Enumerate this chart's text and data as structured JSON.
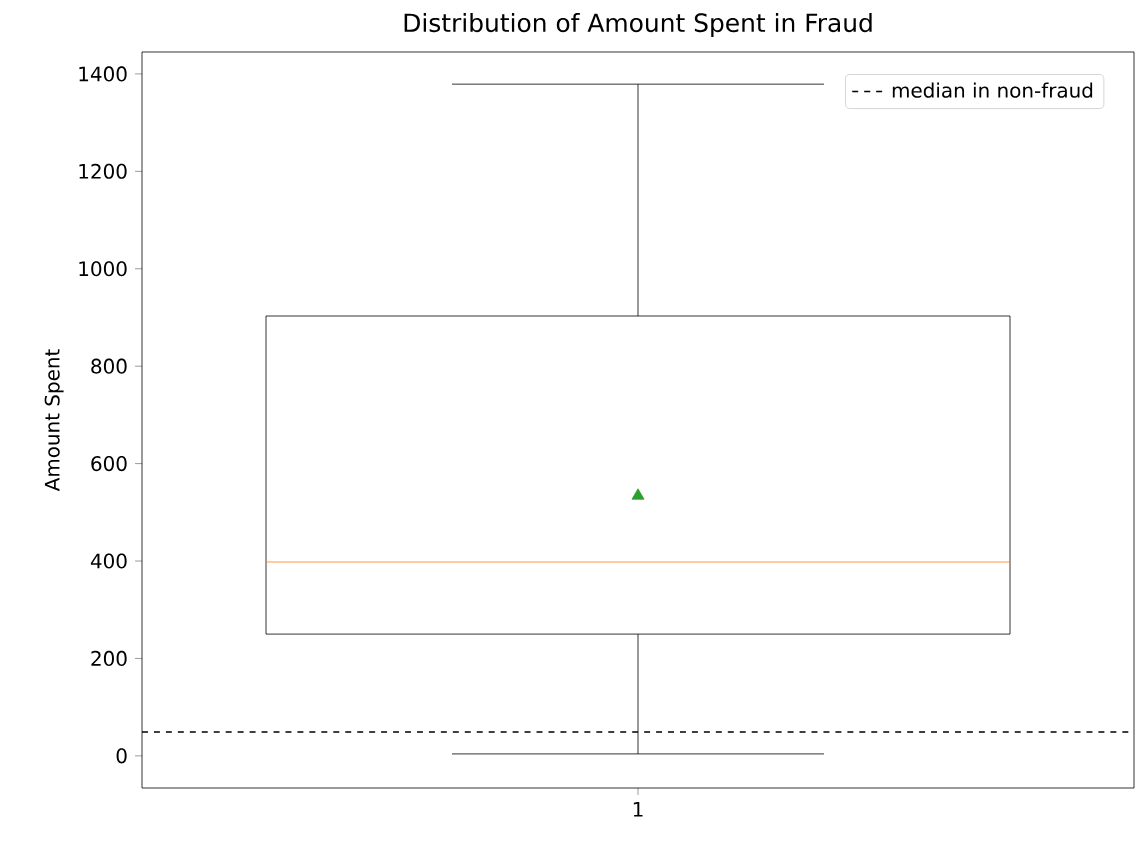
{
  "chart_data": {
    "type": "box",
    "title": "Distribution of Amount Spent in Fraud",
    "ylabel": "Amount Spent",
    "categories": [
      "1"
    ],
    "boxes": [
      {
        "low": 4,
        "q1": 250,
        "median": 398,
        "q3": 903,
        "high": 1379,
        "mean": 534
      }
    ],
    "ylim": [
      -66,
      1445
    ],
    "yticks": [
      0,
      200,
      400,
      600,
      800,
      1000,
      1200,
      1400
    ],
    "ref_lines": [
      {
        "axis": "y",
        "value": 49,
        "label": "median in non-fraud",
        "line_style": "dashed",
        "color": "#000000"
      }
    ],
    "legend": "top right"
  }
}
